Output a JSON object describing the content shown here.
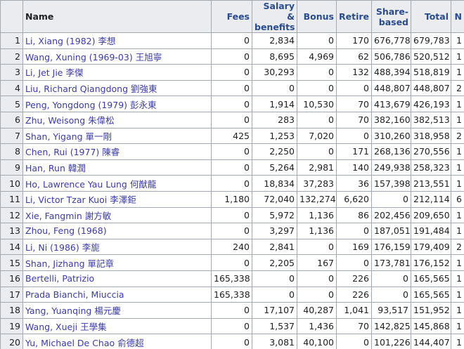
{
  "table": {
    "header": [
      "Name",
      "Fees",
      "Salary & benefits",
      "Bonus",
      "Retire",
      "Share-based",
      "Total",
      "N"
    ],
    "rows": [
      [
        "1",
        "Li, Xiang (1982) 李想",
        "0",
        "2,834",
        "0",
        "170",
        "676,778",
        "679,783",
        "1"
      ],
      [
        "2",
        "Wang, Xuning (1969-03) 王旭寧",
        "0",
        "8,695",
        "4,969",
        "62",
        "506,786",
        "520,512",
        "1"
      ],
      [
        "3",
        "Li, Jet Jie 李傑",
        "0",
        "30,293",
        "0",
        "132",
        "488,394",
        "518,819",
        "1"
      ],
      [
        "4",
        "Liu, Richard Qiangdong 劉強東",
        "0",
        "0",
        "0",
        "0",
        "448,807",
        "448,807",
        "2"
      ],
      [
        "5",
        "Peng, Yongdong (1979) 彭永東",
        "0",
        "1,914",
        "10,530",
        "70",
        "413,679",
        "426,193",
        "1"
      ],
      [
        "6",
        "Zhu, Weisong 朱偉松",
        "0",
        "283",
        "0",
        "70",
        "382,160",
        "382,513",
        "1"
      ],
      [
        "7",
        "Shan, Yigang 單一剛",
        "425",
        "1,253",
        "7,020",
        "0",
        "310,260",
        "318,958",
        "2"
      ],
      [
        "8",
        "Chen, Rui (1977) 陳睿",
        "0",
        "2,250",
        "0",
        "171",
        "268,136",
        "270,556",
        "1"
      ],
      [
        "9",
        "Han, Run 韓潤",
        "0",
        "5,264",
        "2,981",
        "140",
        "249,938",
        "258,323",
        "1"
      ],
      [
        "10",
        "Ho, Lawrence Yau Lung 何猷龍",
        "0",
        "18,834",
        "37,283",
        "36",
        "157,398",
        "213,551",
        "1"
      ],
      [
        "11",
        "Li, Victor Tzar Kuoi 李澤鉅",
        "1,180",
        "72,040",
        "132,274",
        "6,620",
        "0",
        "212,114",
        "6"
      ],
      [
        "12",
        "Xie, Fangmin 謝方敏",
        "0",
        "5,972",
        "1,136",
        "86",
        "202,456",
        "209,650",
        "1"
      ],
      [
        "13",
        "Zhou, Feng (1968)",
        "0",
        "3,297",
        "1,136",
        "0",
        "187,051",
        "191,484",
        "1"
      ],
      [
        "14",
        "Li, Ni (1986) 李旎",
        "240",
        "2,841",
        "0",
        "169",
        "176,159",
        "179,409",
        "2"
      ],
      [
        "15",
        "Shan, Jizhang 單記章",
        "0",
        "2,205",
        "167",
        "0",
        "173,781",
        "176,152",
        "1"
      ],
      [
        "16",
        "Bertelli, Patrizio",
        "165,338",
        "0",
        "0",
        "226",
        "0",
        "165,565",
        "1"
      ],
      [
        "17",
        "Prada Bianchi, Miuccia",
        "165,338",
        "0",
        "0",
        "226",
        "0",
        "165,565",
        "1"
      ],
      [
        "18",
        "Yang, Yuanqing 楊元慶",
        "0",
        "17,107",
        "40,287",
        "1,041",
        "93,517",
        "151,952",
        "1"
      ],
      [
        "19",
        "Wang, Xueji 王學集",
        "0",
        "1,537",
        "1,436",
        "70",
        "142,825",
        "145,868",
        "1"
      ],
      [
        "20",
        "Yu, Michael De Chao 俞德超",
        "0",
        "3,081",
        "40,100",
        "0",
        "101,226",
        "144,407",
        "1"
      ]
    ]
  }
}
